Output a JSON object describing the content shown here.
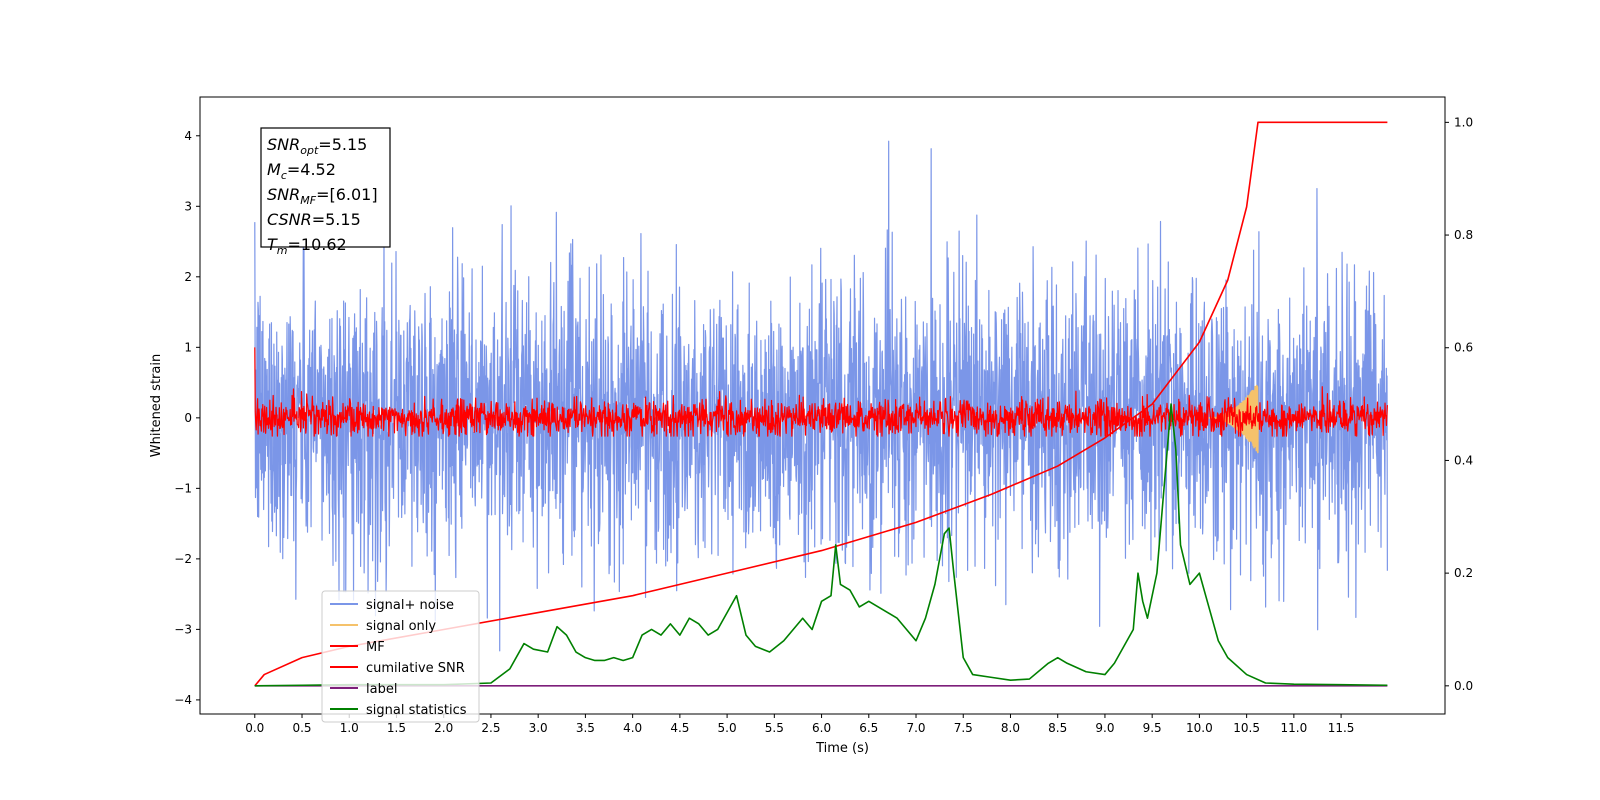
{
  "chart_data": {
    "type": "line",
    "xlabel": "Time (s)",
    "ylabel_left": "Whitened strain",
    "ylabel_right": "",
    "xlim": [
      -0.58,
      12.6
    ],
    "ylim_left": [
      -4.2,
      4.55
    ],
    "ylim_right": [
      -0.05,
      1.045
    ],
    "x_ticks": [
      0.0,
      0.5,
      1.0,
      1.5,
      2.0,
      2.5,
      3.0,
      3.5,
      4.0,
      4.5,
      5.0,
      5.5,
      6.0,
      6.5,
      7.0,
      7.5,
      8.0,
      8.5,
      9.0,
      9.5,
      10.0,
      10.5,
      11.0,
      11.5
    ],
    "x_tick_labels": [
      "0.0",
      "0.5",
      "1.0",
      "1.5",
      "2.0",
      "2.5",
      "3.0",
      "3.5",
      "4.0",
      "4.5",
      "5.0",
      "5.5",
      "6.0",
      "6.5",
      "7.0",
      "7.5",
      "8.0",
      "8.5",
      "9.0",
      "9.5",
      "10.0",
      "10.5",
      "11.0",
      "11.5"
    ],
    "y_ticks_left": [
      4,
      3,
      2,
      1,
      0,
      -1,
      -2,
      -3,
      -4
    ],
    "y_tick_labels_left": [
      "4",
      "3",
      "2",
      "1",
      "0",
      "−1",
      "−2",
      "−3",
      "−4"
    ],
    "y_ticks_right": [
      1.0,
      0.8,
      0.6,
      0.4,
      0.2,
      0.0
    ],
    "y_tick_labels_right": [
      "1.0",
      "0.8",
      "0.6",
      "0.4",
      "0.2",
      "0.0"
    ],
    "legend_position": "lower-left",
    "annotation": {
      "lines": [
        {
          "base": "SNR",
          "sub": "opt",
          "rest": "=5.15"
        },
        {
          "base": "M",
          "sub": "c",
          "rest": "=4.52"
        },
        {
          "base": "SNR",
          "sub": "MF",
          "rest": "=[6.01]"
        },
        {
          "base": "CSNR",
          "sub": "",
          "rest": "=5.15"
        },
        {
          "base": "T",
          "sub": "m",
          "rest": "=10.62"
        }
      ]
    },
    "series": [
      {
        "name": "signal+ noise",
        "color": "#7b96e8",
        "axis": "left",
        "kind": "noise",
        "x_range": [
          0.0,
          11.99
        ],
        "sigma": 1.0,
        "approx_extremes": [
          4.17,
          -3.8
        ]
      },
      {
        "name": "signal only",
        "color": "#f5c26b",
        "axis": "left",
        "kind": "chirp",
        "x_range": [
          10.1,
          10.62
        ],
        "peak_amplitude": 0.5
      },
      {
        "name": "MF",
        "color": "#ff0000",
        "axis": "left",
        "kind": "noise",
        "x_range": [
          0.0,
          11.99
        ],
        "sigma": 0.13,
        "start_value": 1.0
      },
      {
        "name": "cumilative SNR",
        "color": "#ff0000",
        "axis": "right",
        "kind": "curve",
        "points": [
          [
            0.0,
            0.0
          ],
          [
            0.1,
            0.02
          ],
          [
            0.5,
            0.05
          ],
          [
            1.0,
            0.07
          ],
          [
            2.0,
            0.1
          ],
          [
            3.0,
            0.13
          ],
          [
            4.0,
            0.16
          ],
          [
            5.0,
            0.2
          ],
          [
            6.0,
            0.24
          ],
          [
            7.0,
            0.29
          ],
          [
            7.8,
            0.34
          ],
          [
            8.5,
            0.39
          ],
          [
            9.0,
            0.44
          ],
          [
            9.5,
            0.5
          ],
          [
            10.0,
            0.61
          ],
          [
            10.3,
            0.72
          ],
          [
            10.5,
            0.85
          ],
          [
            10.62,
            1.0
          ],
          [
            11.99,
            1.0
          ]
        ]
      },
      {
        "name": "label",
        "color": "#7d1f7a",
        "axis": "right",
        "kind": "curve",
        "points": [
          [
            0.0,
            0.0
          ],
          [
            11.99,
            0.0
          ]
        ]
      },
      {
        "name": "signal statistics",
        "color": "#008000",
        "axis": "right",
        "kind": "curve",
        "points": [
          [
            0.0,
            0.0
          ],
          [
            0.5,
            0.001
          ],
          [
            1.0,
            0.002
          ],
          [
            1.5,
            0.002
          ],
          [
            2.0,
            0.002
          ],
          [
            2.5,
            0.005
          ],
          [
            2.7,
            0.03
          ],
          [
            2.85,
            0.075
          ],
          [
            2.95,
            0.065
          ],
          [
            3.1,
            0.06
          ],
          [
            3.2,
            0.105
          ],
          [
            3.3,
            0.09
          ],
          [
            3.4,
            0.06
          ],
          [
            3.5,
            0.05
          ],
          [
            3.6,
            0.045
          ],
          [
            3.7,
            0.045
          ],
          [
            3.8,
            0.05
          ],
          [
            3.9,
            0.045
          ],
          [
            4.0,
            0.05
          ],
          [
            4.1,
            0.09
          ],
          [
            4.2,
            0.1
          ],
          [
            4.3,
            0.09
          ],
          [
            4.4,
            0.11
          ],
          [
            4.5,
            0.09
          ],
          [
            4.6,
            0.12
          ],
          [
            4.7,
            0.11
          ],
          [
            4.8,
            0.09
          ],
          [
            4.9,
            0.1
          ],
          [
            5.0,
            0.13
          ],
          [
            5.1,
            0.16
          ],
          [
            5.2,
            0.09
          ],
          [
            5.3,
            0.07
          ],
          [
            5.45,
            0.06
          ],
          [
            5.6,
            0.08
          ],
          [
            5.7,
            0.1
          ],
          [
            5.8,
            0.12
          ],
          [
            5.9,
            0.1
          ],
          [
            6.0,
            0.15
          ],
          [
            6.1,
            0.16
          ],
          [
            6.15,
            0.25
          ],
          [
            6.2,
            0.18
          ],
          [
            6.3,
            0.17
          ],
          [
            6.4,
            0.14
          ],
          [
            6.5,
            0.15
          ],
          [
            6.6,
            0.14
          ],
          [
            6.7,
            0.13
          ],
          [
            6.8,
            0.12
          ],
          [
            6.9,
            0.1
          ],
          [
            7.0,
            0.08
          ],
          [
            7.1,
            0.12
          ],
          [
            7.2,
            0.18
          ],
          [
            7.3,
            0.27
          ],
          [
            7.35,
            0.28
          ],
          [
            7.4,
            0.2
          ],
          [
            7.5,
            0.05
          ],
          [
            7.6,
            0.02
          ],
          [
            7.8,
            0.015
          ],
          [
            8.0,
            0.01
          ],
          [
            8.2,
            0.012
          ],
          [
            8.4,
            0.04
          ],
          [
            8.5,
            0.05
          ],
          [
            8.6,
            0.04
          ],
          [
            8.8,
            0.025
          ],
          [
            9.0,
            0.02
          ],
          [
            9.1,
            0.04
          ],
          [
            9.2,
            0.07
          ],
          [
            9.3,
            0.1
          ],
          [
            9.35,
            0.2
          ],
          [
            9.4,
            0.15
          ],
          [
            9.45,
            0.12
          ],
          [
            9.55,
            0.2
          ],
          [
            9.65,
            0.4
          ],
          [
            9.7,
            0.5
          ],
          [
            9.75,
            0.42
          ],
          [
            9.8,
            0.25
          ],
          [
            9.9,
            0.18
          ],
          [
            10.0,
            0.2
          ],
          [
            10.1,
            0.14
          ],
          [
            10.2,
            0.08
          ],
          [
            10.3,
            0.05
          ],
          [
            10.5,
            0.02
          ],
          [
            10.7,
            0.005
          ],
          [
            11.0,
            0.003
          ],
          [
            11.5,
            0.002
          ],
          [
            11.99,
            0.001
          ]
        ]
      }
    ]
  }
}
